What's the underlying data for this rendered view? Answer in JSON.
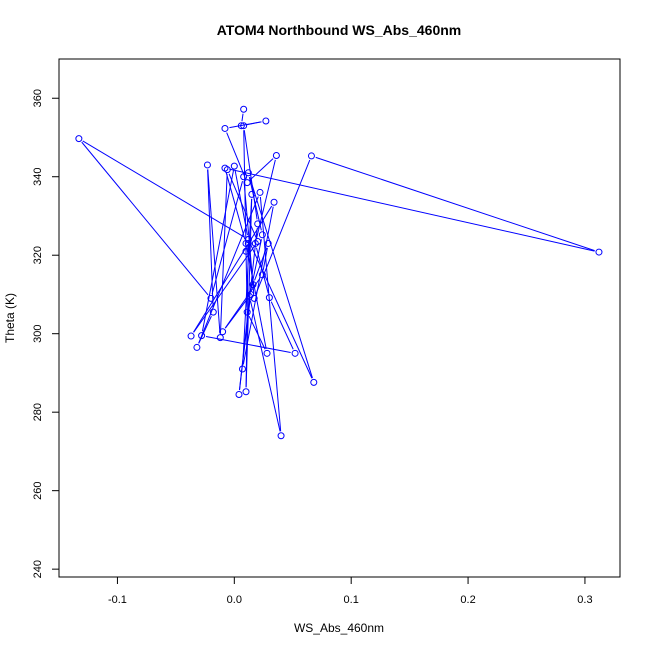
{
  "chart_data": {
    "type": "line",
    "title": "ATOM4 Northbound WS_Abs_460nm",
    "xlabel": "WS_Abs_460nm",
    "ylabel": "Theta (K)",
    "xlim": [
      -0.15,
      0.33
    ],
    "ylim": [
      238,
      370
    ],
    "xticks": [
      -0.1,
      0.0,
      0.1,
      0.2,
      0.3
    ],
    "xtick_labels": [
      "-0.1",
      "0.0",
      "0.1",
      "0.2",
      "0.3"
    ],
    "yticks": [
      240,
      260,
      280,
      300,
      320,
      340,
      360
    ],
    "ytick_labels": [
      "240",
      "260",
      "280",
      "300",
      "320",
      "340",
      "360"
    ],
    "grid": false,
    "series": [
      {
        "color": "#0000ff",
        "marker": "open-circle",
        "points": [
          {
            "x": 0.008,
            "y": 357.2
          },
          {
            "x": 0.006,
            "y": 353.0
          },
          {
            "x": 0.027,
            "y": 354.2
          },
          {
            "x": -0.008,
            "y": 352.3
          },
          {
            "x": 0.011,
            "y": 338.5
          },
          {
            "x": 0.036,
            "y": 345.4
          },
          {
            "x": 0.018,
            "y": 323.0
          },
          {
            "x": 0.03,
            "y": 309.2
          },
          {
            "x": 0.052,
            "y": 295.0
          },
          {
            "x": -0.028,
            "y": 299.5
          },
          {
            "x": 0.0,
            "y": 342.7
          },
          {
            "x": 0.012,
            "y": 324.0
          },
          {
            "x": 0.068,
            "y": 287.6
          },
          {
            "x": 0.012,
            "y": 341.0
          },
          {
            "x": 0.024,
            "y": 325.2
          },
          {
            "x": 0.013,
            "y": 309.5
          },
          {
            "x": 0.04,
            "y": 274.0
          },
          {
            "x": 0.022,
            "y": 336.0
          },
          {
            "x": -0.032,
            "y": 296.5
          },
          {
            "x": -0.018,
            "y": 305.5
          },
          {
            "x": -0.023,
            "y": 343.0
          },
          {
            "x": -0.012,
            "y": 299.0
          },
          {
            "x": -0.006,
            "y": 341.8
          },
          {
            "x": 0.02,
            "y": 323.5
          },
          {
            "x": -0.037,
            "y": 299.4
          },
          {
            "x": 0.034,
            "y": 333.5
          },
          {
            "x": 0.007,
            "y": 291.0
          },
          {
            "x": 0.015,
            "y": 335.5
          },
          {
            "x": 0.01,
            "y": 285.2
          },
          {
            "x": 0.012,
            "y": 324.0
          },
          {
            "x": -0.133,
            "y": 349.7
          },
          {
            "x": -0.02,
            "y": 309.0
          },
          {
            "x": 0.008,
            "y": 340.0
          },
          {
            "x": 0.017,
            "y": 309.0
          },
          {
            "x": 0.066,
            "y": 345.3
          },
          {
            "x": 0.312,
            "y": 320.8
          },
          {
            "x": -0.008,
            "y": 342.2
          },
          {
            "x": 0.01,
            "y": 323.0
          },
          {
            "x": 0.028,
            "y": 295.0
          },
          {
            "x": 0.011,
            "y": 305.5
          },
          {
            "x": 0.008,
            "y": 353.0
          },
          {
            "x": 0.02,
            "y": 328.0
          },
          {
            "x": 0.004,
            "y": 284.5
          },
          {
            "x": 0.014,
            "y": 310.0
          },
          {
            "x": -0.01,
            "y": 300.5
          },
          {
            "x": 0.024,
            "y": 315.0
          },
          {
            "x": 0.029,
            "y": 323.0
          },
          {
            "x": 0.016,
            "y": 312.5
          },
          {
            "x": 0.012,
            "y": 323.0
          },
          {
            "x": 0.01,
            "y": 321.0
          }
        ]
      }
    ]
  }
}
